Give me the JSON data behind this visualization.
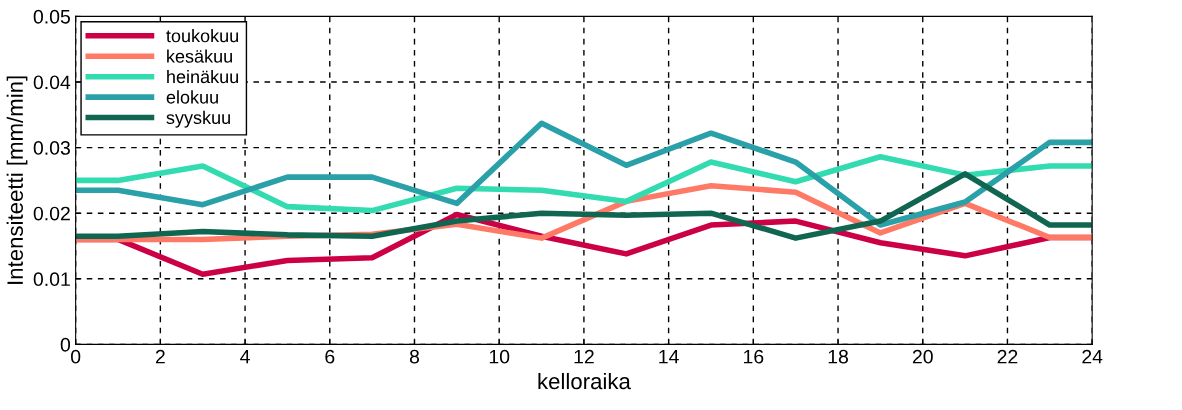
{
  "chart_data": {
    "type": "line",
    "xlabel": "kelloraika",
    "ylabel": "Intensiteetti [mm/min]",
    "x": [
      0,
      1,
      3,
      5,
      7,
      9,
      11,
      13,
      15,
      17,
      19,
      21,
      23,
      24
    ],
    "series": [
      {
        "name": "toukokuu",
        "color": "#cc0044",
        "values": [
          0.016,
          0.016,
          0.0107,
          0.0128,
          0.0132,
          0.0198,
          0.0165,
          0.0138,
          0.0182,
          0.0188,
          0.0155,
          0.0135,
          0.0163,
          0.0163
        ]
      },
      {
        "name": "kesäkuu",
        "color": "#ff7a66",
        "values": [
          0.016,
          0.016,
          0.016,
          0.0165,
          0.0168,
          0.0183,
          0.0162,
          0.0218,
          0.0242,
          0.0232,
          0.017,
          0.0215,
          0.0163,
          0.0163
        ]
      },
      {
        "name": "heinäkuu",
        "color": "#33dbb0",
        "values": [
          0.025,
          0.025,
          0.0272,
          0.021,
          0.0204,
          0.0238,
          0.0235,
          0.0218,
          0.0278,
          0.0248,
          0.0286,
          0.0258,
          0.0272,
          0.0272
        ]
      },
      {
        "name": "elokuu",
        "color": "#2aa0a8",
        "values": [
          0.0235,
          0.0235,
          0.0213,
          0.0255,
          0.0255,
          0.0215,
          0.0337,
          0.0273,
          0.0322,
          0.0278,
          0.0182,
          0.0217,
          0.0308,
          0.0308
        ]
      },
      {
        "name": "syyskuu",
        "color": "#106650",
        "values": [
          0.0165,
          0.0165,
          0.0172,
          0.0167,
          0.0165,
          0.0188,
          0.02,
          0.0197,
          0.02,
          0.0162,
          0.0188,
          0.026,
          0.0182,
          0.0182
        ]
      }
    ],
    "xlim": [
      0,
      24
    ],
    "xticks": [
      0,
      2,
      4,
      6,
      8,
      10,
      12,
      14,
      16,
      18,
      20,
      22,
      24
    ],
    "ylim": [
      0,
      0.05
    ],
    "yticks": [
      0,
      0.01,
      0.02,
      0.03,
      0.04,
      0.05
    ],
    "grid": true,
    "legend": "top left",
    "marker": "none",
    "line_style": "solid"
  }
}
